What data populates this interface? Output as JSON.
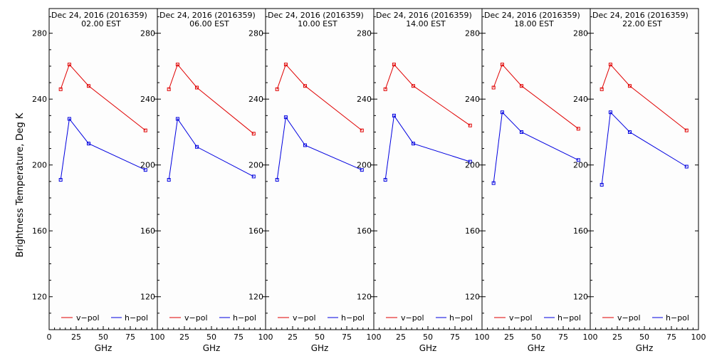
{
  "figure": {
    "ylabel": "Brightness Temperature, Deg K",
    "xlabel": "GHz",
    "legend": {
      "v_label": "v−pol",
      "h_label": "h−pol"
    }
  },
  "colors": {
    "v_pol": "#e00000",
    "h_pol": "#0000e0",
    "axes": "#000000",
    "background": "#fdfdfd"
  },
  "chart_data": [
    {
      "type": "line",
      "title": "Dec 24, 2016 (2016359)",
      "subtitle": "02.00 EST",
      "xlabel": "GHz",
      "ylabel": "Brightness Temperature, Deg K",
      "xlim": [
        0,
        100
      ],
      "ylim": [
        100,
        295
      ],
      "xticks": [
        "0",
        "25",
        "50",
        "75",
        "100"
      ],
      "yticks": [
        "120",
        "160",
        "200",
        "240",
        "280"
      ],
      "series": [
        {
          "name": "v−pol",
          "x": [
            10.65,
            18.7,
            36.5,
            89.0
          ],
          "y": [
            246,
            261,
            248,
            221
          ]
        },
        {
          "name": "h−pol",
          "x": [
            10.65,
            18.7,
            36.5,
            89.0
          ],
          "y": [
            191,
            228,
            213,
            197
          ]
        }
      ]
    },
    {
      "type": "line",
      "title": "Dec 24, 2016 (2016359)",
      "subtitle": "06.00 EST",
      "xlabel": "GHz",
      "ylabel": "",
      "xlim": [
        0,
        100
      ],
      "ylim": [
        100,
        295
      ],
      "xticks": [
        "0",
        "25",
        "50",
        "75",
        "100"
      ],
      "yticks": [
        "120",
        "160",
        "200",
        "240",
        "280"
      ],
      "series": [
        {
          "name": "v−pol",
          "x": [
            10.65,
            18.7,
            36.5,
            89.0
          ],
          "y": [
            246,
            261,
            247,
            219
          ]
        },
        {
          "name": "h−pol",
          "x": [
            10.65,
            18.7,
            36.5,
            89.0
          ],
          "y": [
            191,
            228,
            211,
            193
          ]
        }
      ]
    },
    {
      "type": "line",
      "title": "Dec 24, 2016 (2016359)",
      "subtitle": "10.00 EST",
      "xlabel": "GHz",
      "ylabel": "",
      "xlim": [
        0,
        100
      ],
      "ylim": [
        100,
        295
      ],
      "xticks": [
        "0",
        "25",
        "50",
        "75",
        "100"
      ],
      "yticks": [
        "120",
        "160",
        "200",
        "240",
        "280"
      ],
      "series": [
        {
          "name": "v−pol",
          "x": [
            10.65,
            18.7,
            36.5,
            89.0
          ],
          "y": [
            246,
            261,
            248,
            221
          ]
        },
        {
          "name": "h−pol",
          "x": [
            10.65,
            18.7,
            36.5,
            89.0
          ],
          "y": [
            191,
            229,
            212,
            197
          ]
        }
      ]
    },
    {
      "type": "line",
      "title": "Dec 24, 2016 (2016359)",
      "subtitle": "14.00 EST",
      "xlabel": "GHz",
      "ylabel": "",
      "xlim": [
        0,
        100
      ],
      "ylim": [
        100,
        295
      ],
      "xticks": [
        "0",
        "25",
        "50",
        "75",
        "100"
      ],
      "yticks": [
        "120",
        "160",
        "200",
        "240",
        "280"
      ],
      "series": [
        {
          "name": "v−pol",
          "x": [
            10.65,
            18.7,
            36.5,
            89.0
          ],
          "y": [
            246,
            261,
            248,
            224
          ]
        },
        {
          "name": "h−pol",
          "x": [
            10.65,
            18.7,
            36.5,
            89.0
          ],
          "y": [
            191,
            230,
            213,
            202
          ]
        }
      ]
    },
    {
      "type": "line",
      "title": "Dec 24, 2016 (2016359)",
      "subtitle": "18.00 EST",
      "xlabel": "GHz",
      "ylabel": "",
      "xlim": [
        0,
        100
      ],
      "ylim": [
        100,
        295
      ],
      "xticks": [
        "0",
        "25",
        "50",
        "75",
        "100"
      ],
      "yticks": [
        "120",
        "160",
        "200",
        "240",
        "280"
      ],
      "series": [
        {
          "name": "v−pol",
          "x": [
            10.65,
            18.7,
            36.5,
            89.0
          ],
          "y": [
            247,
            261,
            248,
            222
          ]
        },
        {
          "name": "h−pol",
          "x": [
            10.65,
            18.7,
            36.5,
            89.0
          ],
          "y": [
            189,
            232,
            220,
            203
          ]
        }
      ]
    },
    {
      "type": "line",
      "title": "Dec 24, 2016 (2016359)",
      "subtitle": "22.00 EST",
      "xlabel": "GHz",
      "ylabel": "",
      "xlim": [
        0,
        100
      ],
      "ylim": [
        100,
        295
      ],
      "xticks": [
        "0",
        "25",
        "50",
        "75",
        "100"
      ],
      "yticks": [
        "120",
        "160",
        "200",
        "240",
        "280"
      ],
      "series": [
        {
          "name": "v−pol",
          "x": [
            10.65,
            18.7,
            36.5,
            89.0
          ],
          "y": [
            246,
            261,
            248,
            221
          ]
        },
        {
          "name": "h−pol",
          "x": [
            10.65,
            18.7,
            36.5,
            89.0
          ],
          "y": [
            188,
            232,
            220,
            199
          ]
        }
      ]
    }
  ]
}
